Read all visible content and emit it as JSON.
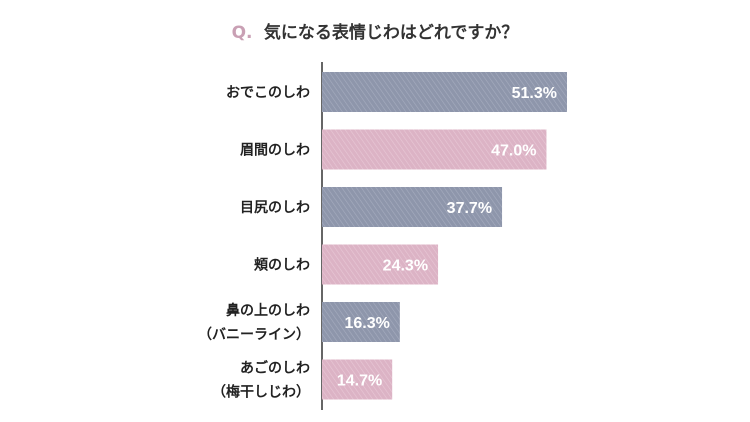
{
  "title": {
    "prefix": "Q.",
    "text": "気になる表情じわはどれですか？"
  },
  "colors": {
    "title_prefix": "#c9a0b4",
    "title_text": "#333333",
    "bar_blue": "#8e96ab",
    "bar_pink": "#dcb3c5",
    "axis": "#333333",
    "label": "#222222",
    "value_label": "#ffffff"
  },
  "chart_data": {
    "type": "bar",
    "orientation": "horizontal",
    "title": "気になる表情じわはどれですか？",
    "categories": [
      [
        "おでこのしわ"
      ],
      [
        "眉間のしわ"
      ],
      [
        "目尻のしわ"
      ],
      [
        "頬のしわ"
      ],
      [
        "鼻の上のしわ",
        "（バニーライン）"
      ],
      [
        "あごのしわ",
        "（梅干しじわ）"
      ]
    ],
    "values": [
      51.3,
      47.0,
      37.7,
      24.3,
      16.3,
      14.7
    ],
    "value_labels": [
      "51.3%",
      "47.0%",
      "37.7%",
      "24.3%",
      "16.3%",
      "14.7%"
    ],
    "bar_colors": [
      "blue",
      "pink",
      "blue",
      "pink",
      "blue",
      "pink"
    ],
    "unit": "%",
    "xlim": [
      0,
      60
    ],
    "grid": false,
    "legend": "none"
  }
}
